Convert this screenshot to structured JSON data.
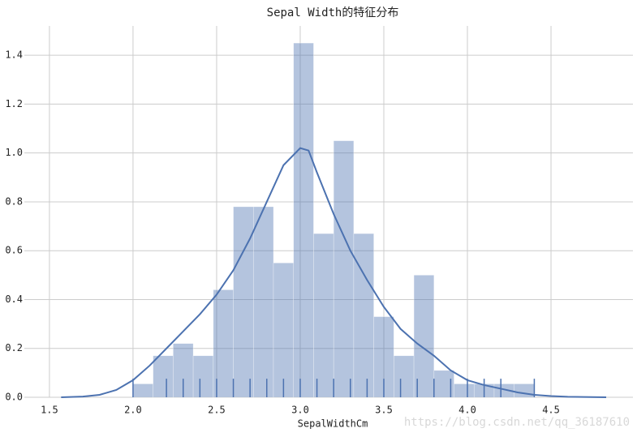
{
  "chart_data": {
    "type": "histogram",
    "title": "Sepal Width的特征分布",
    "x_label": "SepalWidthCm",
    "bins": [
      2.0,
      2.12,
      2.24,
      2.36,
      2.48,
      2.6,
      2.72,
      2.84,
      2.96,
      3.08,
      3.2,
      3.32,
      3.44,
      3.56,
      3.68,
      3.8,
      3.92,
      4.04,
      4.16,
      4.28,
      4.4
    ],
    "values": [
      0.055,
      0.17,
      0.22,
      0.17,
      0.44,
      0.78,
      0.78,
      0.55,
      1.45,
      0.67,
      1.05,
      0.67,
      0.33,
      0.17,
      0.5,
      0.11,
      0.055,
      0.055,
      0.055,
      0.055
    ],
    "color": "#4c72b0",
    "kde": {
      "x": [
        1.57,
        1.7,
        1.8,
        1.9,
        2.0,
        2.1,
        2.2,
        2.3,
        2.4,
        2.5,
        2.6,
        2.7,
        2.8,
        2.9,
        3.0,
        3.05,
        3.1,
        3.2,
        3.3,
        3.4,
        3.5,
        3.6,
        3.7,
        3.8,
        3.9,
        4.0,
        4.1,
        4.2,
        4.3,
        4.4,
        4.5,
        4.6,
        4.83
      ],
      "y": [
        0,
        0.003,
        0.01,
        0.03,
        0.07,
        0.13,
        0.2,
        0.27,
        0.34,
        0.42,
        0.52,
        0.65,
        0.8,
        0.95,
        1.02,
        1.01,
        0.92,
        0.75,
        0.6,
        0.48,
        0.37,
        0.28,
        0.22,
        0.17,
        0.11,
        0.07,
        0.05,
        0.035,
        0.02,
        0.01,
        0.005,
        0.002,
        0
      ]
    },
    "rug": [
      2.0,
      2.2,
      2.3,
      2.4,
      2.5,
      2.6,
      2.7,
      2.8,
      2.9,
      3.0,
      3.1,
      3.2,
      3.3,
      3.4,
      3.5,
      3.6,
      3.7,
      3.8,
      3.9,
      4.0,
      4.1,
      4.2,
      4.4
    ],
    "xlim": [
      1.35,
      4.99
    ],
    "ylim": [
      0,
      1.52
    ],
    "xticks": [
      {
        "value": 1.5,
        "label": "1.5"
      },
      {
        "value": 2,
        "label": "2.0"
      },
      {
        "value": 2.5,
        "label": "2.5"
      },
      {
        "value": 3,
        "label": "3.0"
      },
      {
        "value": 3.5,
        "label": "3.5"
      },
      {
        "value": 4,
        "label": "4.0"
      },
      {
        "value": 4.5,
        "label": "4.5"
      }
    ],
    "yticks": [
      {
        "value": 0,
        "label": "0.0"
      },
      {
        "value": 0.2,
        "label": "0.2"
      },
      {
        "value": 0.4,
        "label": "0.4"
      },
      {
        "value": 0.6,
        "label": "0.6"
      },
      {
        "value": 0.8,
        "label": "0.8"
      },
      {
        "value": 1.0,
        "label": "1.0"
      },
      {
        "value": 1.2,
        "label": "1.2"
      },
      {
        "value": 1.4,
        "label": "1.4"
      }
    ],
    "grid": true,
    "watermark": "https://blog.csdn.net/qq_36187610"
  }
}
